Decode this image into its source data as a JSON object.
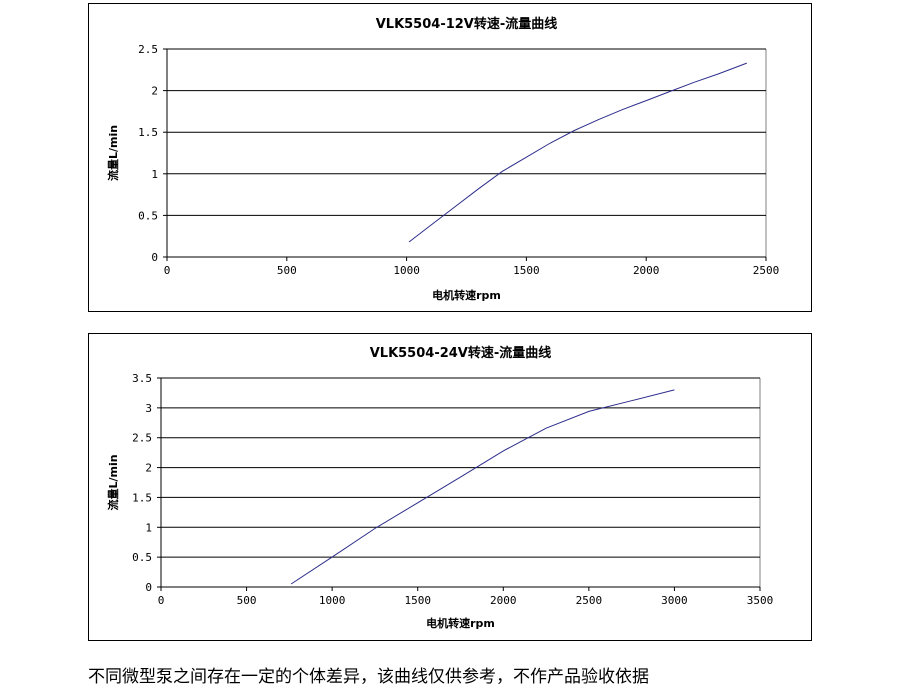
{
  "chart_data": [
    {
      "type": "line",
      "title": "VLK5504-12V转速-流量曲线",
      "xlabel": "电机转速rpm",
      "ylabel": "流量L/min",
      "xlim": [
        0,
        2500
      ],
      "ylim": [
        0,
        2.5
      ],
      "xticks": [
        "0",
        "500",
        "1000",
        "1500",
        "2000",
        "2500"
      ],
      "yticks": [
        "0",
        "0.5",
        "1",
        "1.5",
        "2",
        "2.5"
      ],
      "grid": "horizontal",
      "series": [
        {
          "color": "#2d2d8c",
          "x": [
            1010,
            1100,
            1200,
            1300,
            1400,
            1500,
            1600,
            1700,
            1800,
            1900,
            2000,
            2100,
            2200,
            2300,
            2420
          ],
          "y": [
            0.18,
            0.38,
            0.6,
            0.82,
            1.03,
            1.2,
            1.37,
            1.52,
            1.65,
            1.77,
            1.88,
            1.99,
            2.1,
            2.2,
            2.33
          ]
        }
      ]
    },
    {
      "type": "line",
      "title": "VLK5504-24V转速-流量曲线",
      "xlabel": "电机转速rpm",
      "ylabel": "流量L/min",
      "xlim": [
        0,
        3500
      ],
      "ylim": [
        0,
        3.5
      ],
      "xticks": [
        "0",
        "500",
        "1000",
        "1500",
        "2000",
        "2500",
        "3000",
        "3500"
      ],
      "yticks": [
        "0",
        "0.5",
        "1",
        "1.5",
        "2",
        "2.5",
        "3",
        "3.5"
      ],
      "grid": "horizontal",
      "series": [
        {
          "color": "#2d2d8c",
          "x": [
            760,
            1000,
            1250,
            1500,
            1750,
            2000,
            2250,
            2500,
            2750,
            3000
          ],
          "y": [
            0.05,
            0.5,
            0.98,
            1.41,
            1.84,
            2.28,
            2.66,
            2.94,
            3.12,
            3.3
          ]
        }
      ]
    }
  ],
  "footer": {
    "note": "不同微型泵之间存在一定的个体差异，该曲线仅供参考，不作产品验收依据"
  }
}
